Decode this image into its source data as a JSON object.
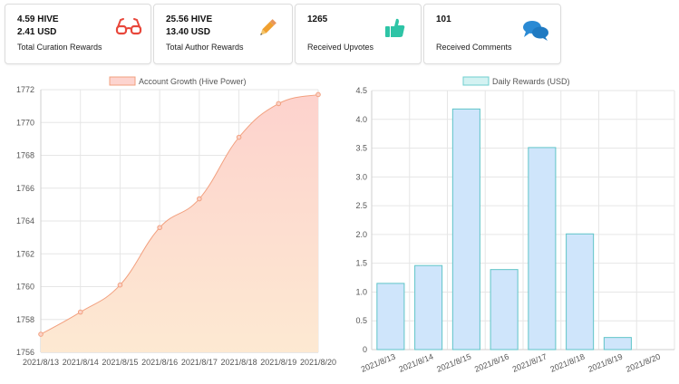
{
  "cards": [
    {
      "line1": "4.59 HIVE",
      "line2": "2.41 USD",
      "label": "Total Curation Rewards",
      "icon": "glasses-icon",
      "color": "#e8473b"
    },
    {
      "line1": "25.56 HIVE",
      "line2": "13.40 USD",
      "label": "Total Author Rewards",
      "icon": "pencil-icon",
      "color": "#f0a030"
    },
    {
      "line1": "1265",
      "line2": "",
      "label": "Received Upvotes",
      "icon": "thumbs-up-icon",
      "color": "#2ec4a6"
    },
    {
      "line1": "101",
      "line2": "",
      "label": "Received Comments",
      "icon": "comments-icon",
      "color": "#2a8ad4"
    }
  ],
  "chart_data": [
    {
      "type": "area",
      "legend": "Account Growth (Hive Power)",
      "legend_position": "top",
      "categories": [
        "2021/8/13",
        "2021/8/14",
        "2021/8/15",
        "2021/8/16",
        "2021/8/17",
        "2021/8/18",
        "2021/8/19",
        "2021/8/20"
      ],
      "x": [
        0,
        0.5,
        1,
        1.5,
        2,
        2.5,
        3,
        3.5,
        4,
        4.5,
        5,
        5.5,
        6,
        6.5,
        7
      ],
      "values": [
        1757.1,
        1758.45,
        1760.1,
        1763.6,
        1765.35,
        1769.1,
        1771.15,
        1771.7
      ],
      "series": [
        {
          "values": [
            1757.1,
            1758.45,
            1760.1,
            1763.6,
            1765.35,
            1769.1,
            1771.15,
            1771.7
          ]
        }
      ],
      "ylim": [
        1756,
        1772
      ],
      "yticks": [
        1756,
        1758,
        1760,
        1762,
        1764,
        1766,
        1768,
        1770,
        1772
      ],
      "grid": true,
      "colors": {
        "line": "#f2a07f",
        "fill_top": "#fdd4cf",
        "fill_bottom": "#fde7cf",
        "point": "#f2a07f"
      }
    },
    {
      "type": "bar",
      "legend": "Daily Rewards (USD)",
      "legend_position": "top",
      "categories": [
        "2021/8/13",
        "2021/8/14",
        "2021/8/15",
        "2021/8/16",
        "2021/8/17",
        "2021/8/18",
        "2021/8/19",
        "2021/8/20"
      ],
      "values": [
        1.15,
        1.46,
        4.18,
        1.39,
        3.51,
        2.01,
        0.21,
        0
      ],
      "series": [
        {
          "values": [
            1.15,
            1.46,
            4.18,
            1.39,
            3.51,
            2.01,
            0.21,
            0
          ]
        }
      ],
      "ylim": [
        0,
        4.5
      ],
      "yticks": [
        "0",
        "0.5",
        "1.0",
        "1.5",
        "2.0",
        "2.5",
        "3.0",
        "3.5",
        "4.0",
        "4.5"
      ],
      "grid": true,
      "colors": {
        "bar_fill": "#cfe5fb",
        "bar_border": "#5fc4c8",
        "legend_fill": "#d3f2f2",
        "legend_border": "#6fcfcf"
      }
    }
  ]
}
